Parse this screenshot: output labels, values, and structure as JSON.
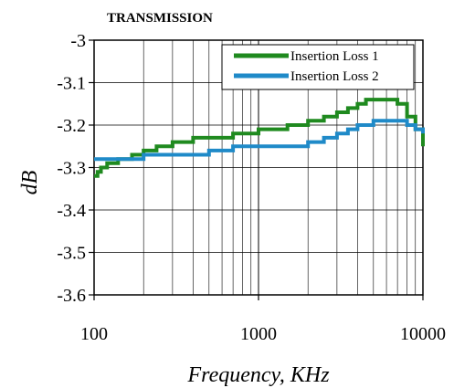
{
  "chart_data": {
    "type": "line",
    "title": "TRANSMISSION",
    "xlabel": "Frequency, KHz",
    "ylabel": "dB",
    "x_scale": "log",
    "xlim": [
      100,
      10000
    ],
    "ylim": [
      -3.6,
      -3.0
    ],
    "x_ticks": [
      100,
      1000,
      10000
    ],
    "x_tick_labels": [
      "100",
      "1000",
      "10000"
    ],
    "y_ticks": [
      -3.0,
      -3.1,
      -3.2,
      -3.3,
      -3.4,
      -3.5,
      -3.6
    ],
    "y_tick_labels": [
      "-3",
      "-3.1",
      "-3.2",
      "-3.3",
      "-3.4",
      "-3.5",
      "-3.6"
    ],
    "grid": true,
    "legend_position": "top-right",
    "series": [
      {
        "name": "Insertion Loss 1",
        "color": "#1f8a1f",
        "x": [
          100,
          105,
          110,
          120,
          140,
          170,
          200,
          240,
          300,
          400,
          500,
          700,
          1000,
          1500,
          2000,
          2500,
          3000,
          3500,
          4000,
          4500,
          5000,
          6000,
          7000,
          8000,
          9000,
          10000
        ],
        "y": [
          -3.32,
          -3.31,
          -3.3,
          -3.29,
          -3.28,
          -3.27,
          -3.26,
          -3.25,
          -3.24,
          -3.23,
          -3.23,
          -3.22,
          -3.21,
          -3.2,
          -3.19,
          -3.18,
          -3.17,
          -3.16,
          -3.15,
          -3.14,
          -3.14,
          -3.14,
          -3.15,
          -3.18,
          -3.21,
          -3.25
        ]
      },
      {
        "name": "Insertion Loss 2",
        "color": "#1f8ac8",
        "x": [
          100,
          150,
          200,
          300,
          500,
          700,
          1000,
          1500,
          2000,
          2500,
          3000,
          3500,
          4000,
          5000,
          6000,
          7000,
          8000,
          9000,
          10000
        ],
        "y": [
          -3.28,
          -3.28,
          -3.27,
          -3.27,
          -3.26,
          -3.25,
          -3.25,
          -3.25,
          -3.24,
          -3.23,
          -3.22,
          -3.21,
          -3.2,
          -3.19,
          -3.19,
          -3.19,
          -3.2,
          -3.21,
          -3.22
        ]
      }
    ]
  }
}
